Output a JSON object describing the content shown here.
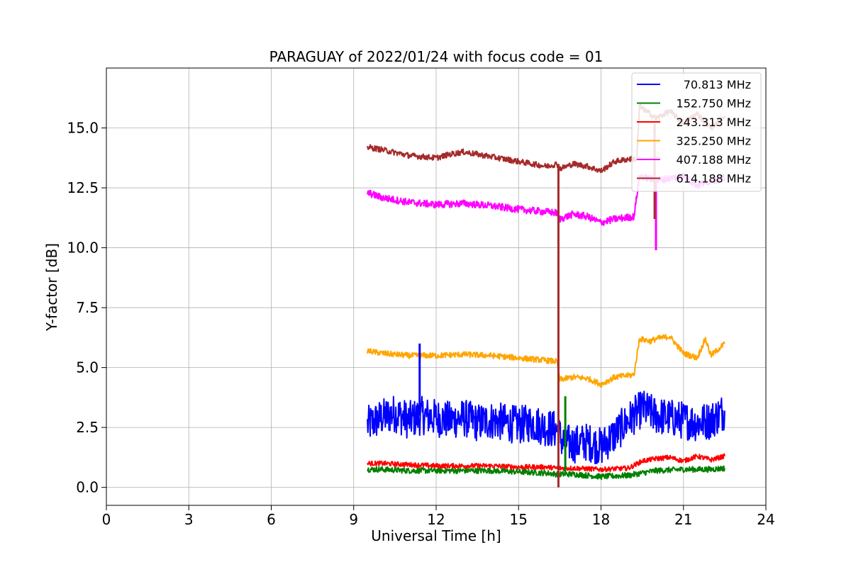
{
  "chart_data": {
    "type": "line",
    "title": "PARAGUAY of 2022/01/24 with focus code = 01",
    "xlabel": "Universal Time [h]",
    "ylabel": "Y-factor [dB]",
    "xlim": [
      0,
      24
    ],
    "ylim": [
      -0.75,
      17.5
    ],
    "x_ticks": [
      "0",
      "3",
      "6",
      "9",
      "12",
      "15",
      "18",
      "21",
      "24"
    ],
    "y_ticks": [
      "0.0",
      "2.5",
      "5.0",
      "7.5",
      "10.0",
      "12.5",
      "15.0"
    ],
    "grid": true,
    "legend_position": "top-right",
    "series": [
      {
        "name": "70.813 MHz",
        "color": "#0000ff",
        "x": [
          9.5,
          10.0,
          10.5,
          11.0,
          11.5,
          12.0,
          12.5,
          13.0,
          13.5,
          14.0,
          14.5,
          15.0,
          15.5,
          16.0,
          16.4,
          16.6,
          17.0,
          17.5,
          18.0,
          18.5,
          19.0,
          19.5,
          20.0,
          20.5,
          21.0,
          21.5,
          22.0,
          22.5
        ],
        "y": [
          2.6,
          2.9,
          3.1,
          2.8,
          3.0,
          2.9,
          2.8,
          2.9,
          2.7,
          2.8,
          2.7,
          2.6,
          2.7,
          2.5,
          2.4,
          1.9,
          1.8,
          1.9,
          1.7,
          2.2,
          2.8,
          3.3,
          3.0,
          2.9,
          2.8,
          2.7,
          2.8,
          3.2
        ],
        "noise_amplitude": 0.8
      },
      {
        "name": "152.750 MHz",
        "color": "#008000",
        "x": [
          9.5,
          10.0,
          11.0,
          12.0,
          13.0,
          14.0,
          15.0,
          16.0,
          16.4,
          17.0,
          18.0,
          19.0,
          20.0,
          21.0,
          22.0,
          22.5
        ],
        "y": [
          0.75,
          0.75,
          0.7,
          0.7,
          0.7,
          0.7,
          0.65,
          0.6,
          0.55,
          0.55,
          0.45,
          0.5,
          0.7,
          0.75,
          0.75,
          0.8
        ],
        "noise_amplitude": 0.12
      },
      {
        "name": "243.313 MHz",
        "color": "#ff0000",
        "x": [
          9.5,
          10.0,
          11.0,
          12.0,
          13.0,
          14.0,
          15.0,
          16.0,
          16.4,
          17.0,
          18.0,
          19.0,
          19.5,
          20.0,
          20.5,
          21.0,
          21.5,
          22.0,
          22.5
        ],
        "y": [
          1.0,
          1.0,
          0.95,
          0.9,
          0.9,
          0.9,
          0.85,
          0.85,
          0.8,
          0.8,
          0.75,
          0.8,
          1.1,
          1.2,
          1.25,
          1.1,
          1.3,
          1.15,
          1.3
        ],
        "noise_amplitude": 0.1
      },
      {
        "name": "325.250 MHz",
        "color": "#ffa500",
        "x": [
          9.5,
          10.0,
          11.0,
          12.0,
          13.0,
          14.0,
          15.0,
          16.0,
          16.4,
          16.5,
          17.0,
          17.5,
          18.0,
          18.5,
          19.2,
          19.4,
          19.8,
          20.0,
          20.5,
          21.0,
          21.5,
          21.8,
          22.0,
          22.5
        ],
        "y": [
          5.7,
          5.6,
          5.5,
          5.5,
          5.55,
          5.5,
          5.4,
          5.3,
          5.25,
          4.5,
          4.6,
          4.55,
          4.3,
          4.6,
          4.7,
          6.2,
          6.1,
          6.2,
          6.3,
          5.6,
          5.4,
          6.2,
          5.5,
          6.0
        ],
        "noise_amplitude": 0.12
      },
      {
        "name": "407.188 MHz",
        "color": "#ff00ff",
        "x": [
          9.5,
          10.0,
          10.5,
          11.0,
          12.0,
          13.0,
          14.0,
          15.0,
          16.0,
          16.4,
          16.5,
          17.0,
          17.5,
          18.0,
          18.5,
          19.2,
          19.4,
          20.0,
          20.5,
          21.0,
          21.5,
          22.0,
          22.5
        ],
        "y": [
          12.3,
          12.1,
          12.0,
          11.9,
          11.8,
          11.85,
          11.75,
          11.6,
          11.5,
          11.45,
          11.2,
          11.4,
          11.3,
          11.05,
          11.2,
          11.3,
          13.0,
          12.8,
          12.9,
          13.0,
          12.6,
          12.8,
          12.9
        ],
        "noise_amplitude": 0.15
      },
      {
        "name": "614.188 MHz",
        "color": "#a52a2a",
        "x": [
          9.5,
          10.0,
          11.0,
          12.0,
          12.5,
          13.0,
          13.5,
          14.0,
          15.0,
          15.5,
          16.0,
          16.4,
          16.5,
          17.0,
          17.5,
          18.0,
          18.5,
          19.0,
          19.3,
          19.4,
          20.0,
          20.5,
          21.0,
          21.5,
          22.0,
          22.5
        ],
        "y": [
          14.2,
          14.1,
          13.85,
          13.75,
          13.9,
          14.0,
          13.9,
          13.8,
          13.6,
          13.5,
          13.4,
          13.5,
          13.3,
          13.5,
          13.4,
          13.2,
          13.6,
          13.7,
          13.7,
          15.9,
          15.4,
          15.7,
          15.2,
          15.6,
          15.0,
          15.5
        ],
        "noise_amplitude": 0.12
      }
    ],
    "annotations": [
      {
        "series": "614.188 MHz",
        "x": 16.45,
        "y_from": 13.5,
        "y_to": 0.0,
        "kind": "dropout"
      },
      {
        "series": "407.188 MHz",
        "x": 20.0,
        "y_from": 12.8,
        "y_to": 9.9,
        "kind": "dropout"
      },
      {
        "series": "614.188 MHz",
        "x": 19.95,
        "y_from": 15.2,
        "y_to": 11.2,
        "kind": "dropout"
      },
      {
        "series": "70.813 MHz",
        "x": 11.4,
        "y_from": 3.0,
        "y_to": 6.0,
        "kind": "spike"
      },
      {
        "series": "152.750 MHz",
        "x": 16.7,
        "y_from": 0.6,
        "y_to": 3.8,
        "kind": "spike"
      }
    ]
  }
}
